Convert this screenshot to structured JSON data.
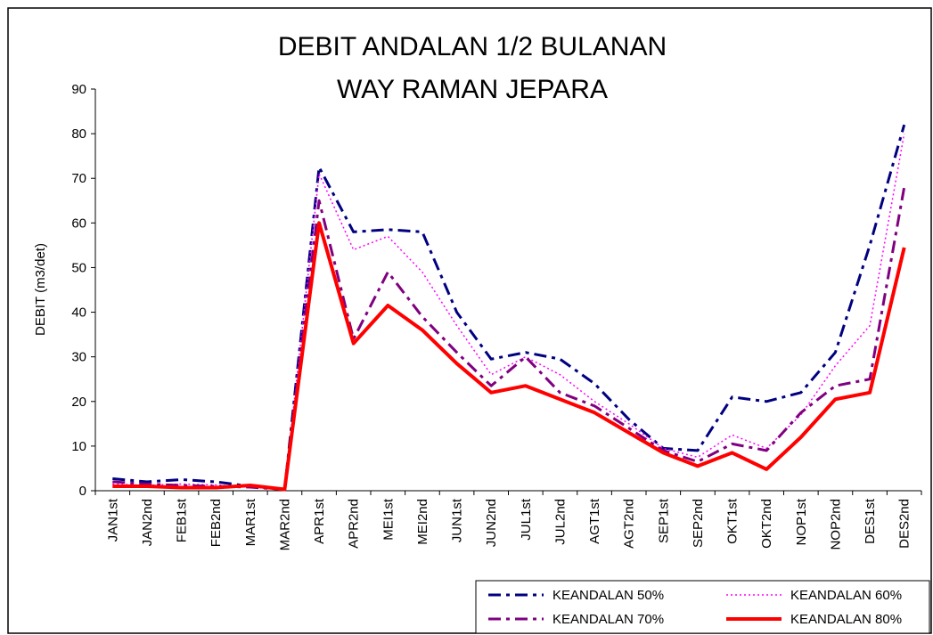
{
  "chart_data": {
    "type": "line",
    "title": "DEBIT ANDALAN 1/2 BULANAN",
    "subtitle": "WAY RAMAN JEPARA",
    "y_label": "DEBIT  (m3/det)",
    "categories": [
      "JAN1st",
      "JAN2nd",
      "FEB1st",
      "FEB2nd",
      "MAR1st",
      "MAR2nd",
      "APR1st",
      "APR2nd",
      "MEI1st",
      "MEI2nd",
      "JUN1st",
      "JUN2nd",
      "JUL1st",
      "JUL2nd",
      "AGT1st",
      "AGT2nd",
      "SEP1st",
      "SEP2nd",
      "OKT1st",
      "OKT2nd",
      "NOP1st",
      "NOP2nd",
      "DES1st",
      "DES2nd"
    ],
    "series": [
      {
        "name": "KEANDALAN 50%",
        "color": "#000080",
        "line_style": "dashdot",
        "values": [
          2.7,
          2,
          2.5,
          2,
          1,
          0.3,
          72.5,
          58,
          58.5,
          58,
          40,
          29.5,
          31,
          29.5,
          24,
          16,
          9.5,
          9,
          21,
          20,
          22,
          31,
          55,
          82
        ]
      },
      {
        "name": "KEANDALAN 60%",
        "color": "#ff00ff",
        "line_style": "dotted",
        "values": [
          1.5,
          1.2,
          1.5,
          1.3,
          0.8,
          0.3,
          71,
          54,
          57,
          49,
          37,
          26,
          30,
          26,
          20,
          15,
          9.5,
          7.5,
          12.5,
          9.5,
          17,
          28,
          37,
          80
        ]
      },
      {
        "name": "KEANDALAN 70%",
        "color": "#800080",
        "line_style": "dashdot",
        "values": [
          2,
          1.5,
          1.2,
          1,
          0.8,
          0.3,
          65,
          34,
          49,
          39,
          31,
          23.5,
          30,
          22,
          19,
          14,
          9,
          6.5,
          10.5,
          9,
          17.5,
          23.5,
          25,
          68
        ]
      },
      {
        "name": "KEANDALAN 80%",
        "color": "#ff0000",
        "line_style": "solid",
        "values": [
          1,
          1,
          0.7,
          0.7,
          1.2,
          0.3,
          60,
          33,
          41.5,
          36,
          28.5,
          22,
          23.5,
          20.5,
          17.5,
          13,
          8.5,
          5.5,
          8.5,
          4.8,
          12,
          20.5,
          22,
          54.5
        ]
      }
    ],
    "ylim": [
      0,
      90
    ],
    "yticks": [
      0,
      10,
      20,
      30,
      40,
      50,
      60,
      70,
      80,
      90
    ],
    "grid": false
  }
}
